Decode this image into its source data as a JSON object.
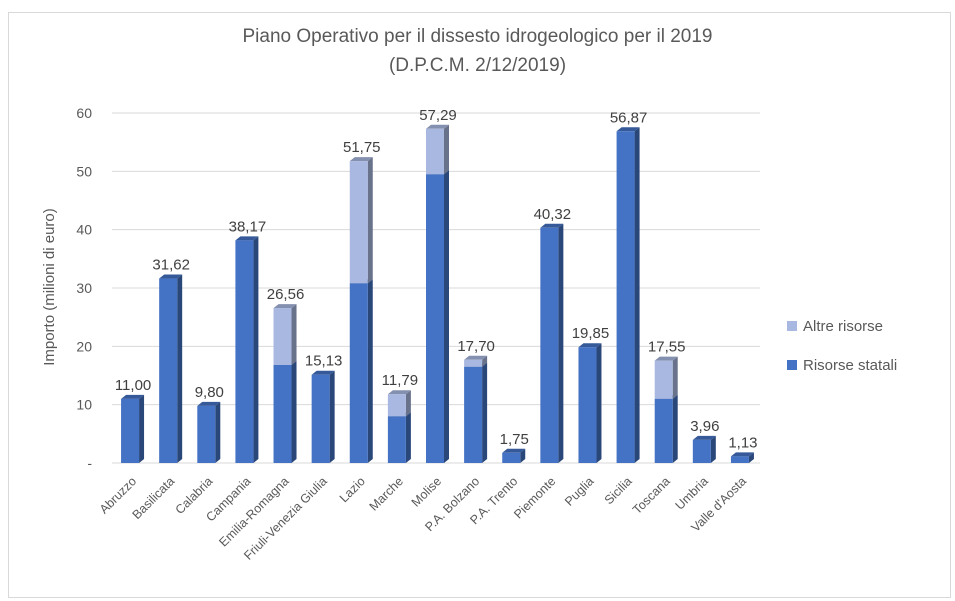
{
  "chart_data": {
    "type": "bar",
    "stacked": true,
    "title_lines": [
      "Piano Operativo per il dissesto idrogeologico per il 2019",
      "(D.P.C.M. 2/12/2019)"
    ],
    "ylabel": "Importo (milioni di euro)",
    "xlabel": "",
    "ylim": [
      0,
      60
    ],
    "yticks": [
      0,
      10,
      20,
      30,
      40,
      50,
      60
    ],
    "ytick_labels": [
      "-",
      "10",
      "20",
      "30",
      "40",
      "50",
      "60"
    ],
    "grid": true,
    "legend_position": "right",
    "categories": [
      "Abruzzo",
      "Basilicata",
      "Calabria",
      "Campania",
      "Emilia-Romagna",
      "Friuli-Venezia Giulia",
      "Lazio",
      "Marche",
      "Molise",
      "P.A. Bolzano",
      "P.A. Trento",
      "Piemonte",
      "Puglia",
      "Sicilia",
      "Toscana",
      "Umbria",
      "Valle d'Aosta"
    ],
    "series": [
      {
        "name": "Risorse statali",
        "color": "#4472c4",
        "values": [
          11.0,
          31.62,
          9.8,
          38.17,
          16.8,
          15.13,
          30.8,
          8.0,
          49.5,
          16.5,
          1.75,
          40.32,
          19.85,
          56.87,
          11.0,
          3.96,
          1.13
        ]
      },
      {
        "name": "Altre risorse",
        "color": "#a9b8e0",
        "values": [
          0,
          0,
          0,
          0,
          9.76,
          0,
          20.95,
          3.79,
          7.79,
          1.2,
          0,
          0,
          0,
          0,
          6.55,
          0,
          0
        ]
      }
    ],
    "totals_labels": [
      "11,00",
      "31,62",
      "9,80",
      "38,17",
      "26,56",
      "15,13",
      "51,75",
      "11,79",
      "57,29",
      "17,70",
      "1,75",
      "40,32",
      "19,85",
      "56,87",
      "17,55",
      "3,96",
      "1,13"
    ],
    "legend_order": [
      "Altre risorse",
      "Risorse statali"
    ]
  }
}
